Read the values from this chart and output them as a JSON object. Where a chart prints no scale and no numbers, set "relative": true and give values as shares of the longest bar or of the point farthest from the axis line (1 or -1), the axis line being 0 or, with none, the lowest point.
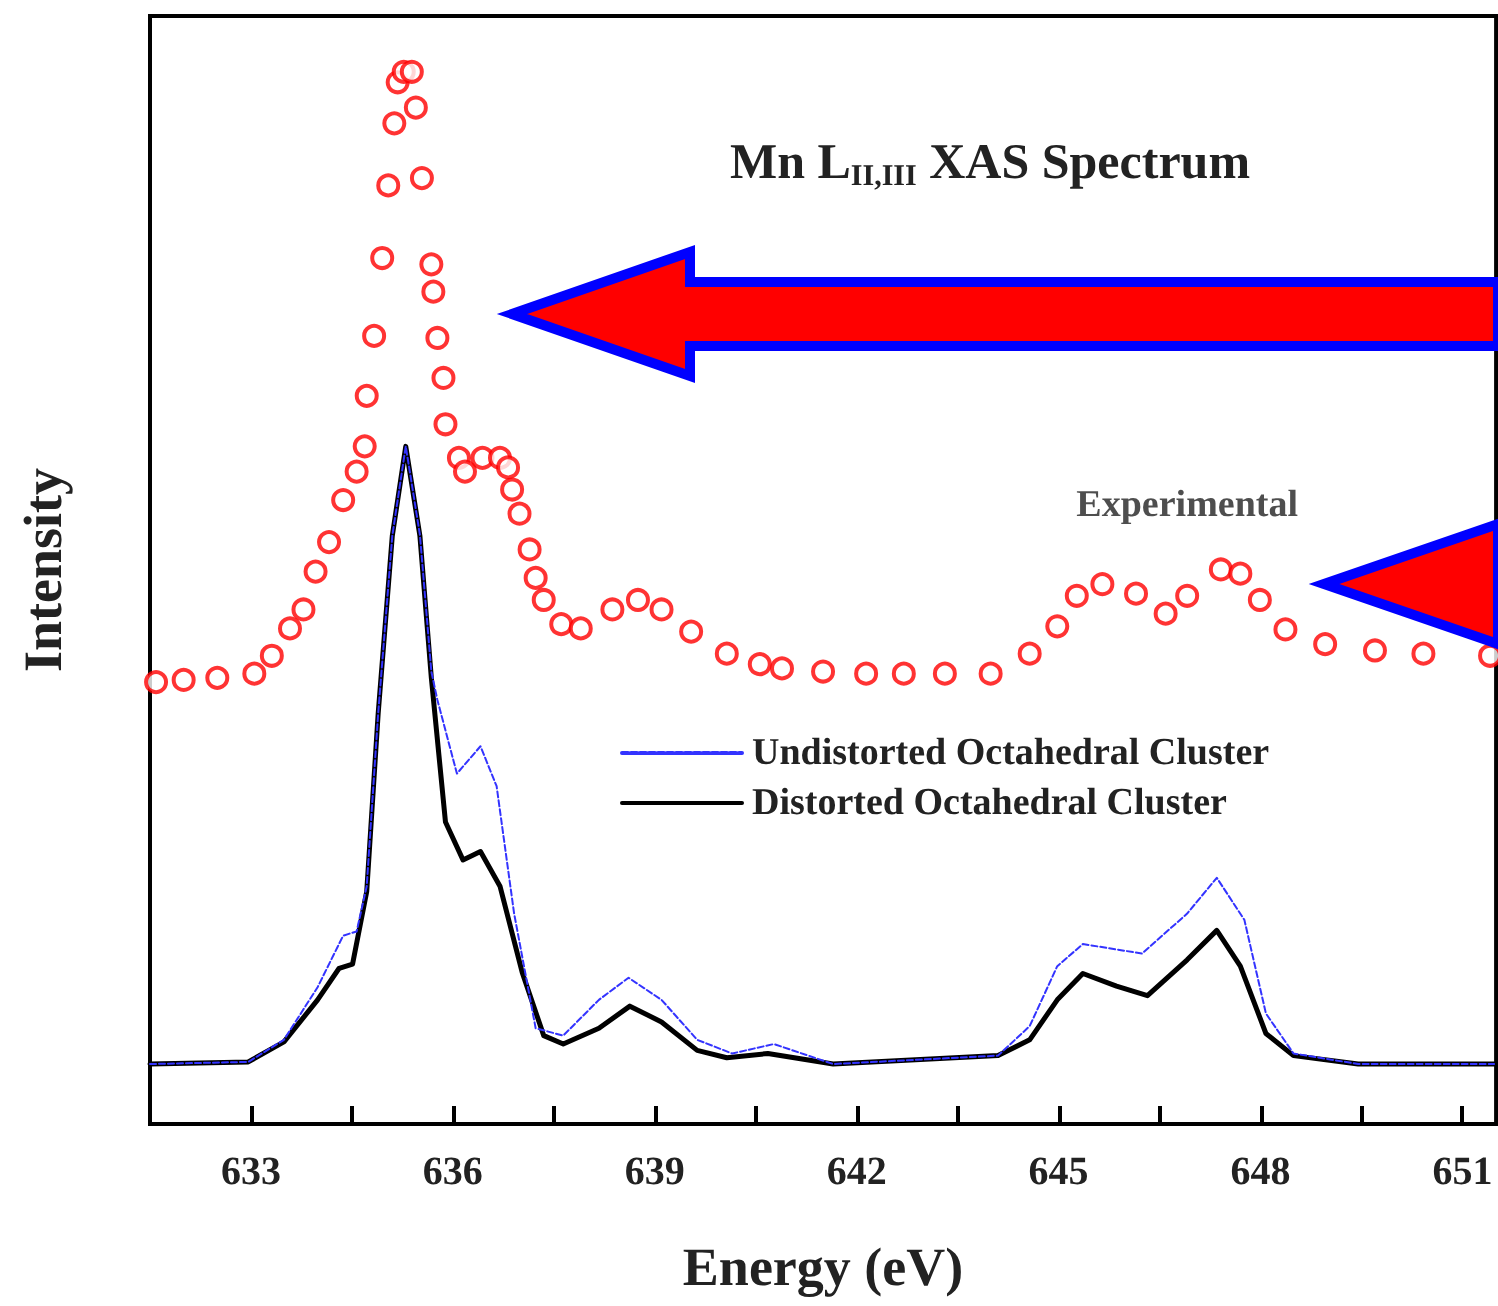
{
  "chart_data": {
    "type": "line",
    "title": "Mn L$_{II,III}$ XAS Spectrum",
    "xlabel": "Energy (eV)",
    "ylabel": "Intensity",
    "relative": true,
    "xlim": [
      631.5,
      651.5
    ],
    "xticks": [
      633,
      {
        "value": 634.5,
        "label": null
      },
      636,
      {
        "value": 637.5,
        "label": null
      },
      639,
      {
        "value": 640.5,
        "label": null
      },
      642,
      {
        "value": 643.5,
        "label": null
      },
      645,
      {
        "value": 646.5,
        "label": null
      },
      648,
      {
        "value": 649.5,
        "label": null
      },
      651
    ],
    "legend": "right",
    "grid": false,
    "series": [
      {
        "name": "Experimental",
        "type": "scatter",
        "marker": "circle",
        "color": "#ff0000",
        "x": [
          631.59,
          632.0,
          632.5,
          633.05,
          633.31,
          633.58,
          633.78,
          633.96,
          634.16,
          634.37,
          634.57,
          634.69,
          634.72,
          634.83,
          634.95,
          635.04,
          635.13,
          635.18,
          635.27,
          635.39,
          635.45,
          635.54,
          635.68,
          635.71,
          635.77,
          635.86,
          635.89,
          636.09,
          636.18,
          636.44,
          636.7,
          636.82,
          636.88,
          636.99,
          637.14,
          637.23,
          637.35,
          637.61,
          637.9,
          638.37,
          638.75,
          639.1,
          639.54,
          640.07,
          640.56,
          640.89,
          641.5,
          642.14,
          642.7,
          643.31,
          643.99,
          644.57,
          644.98,
          645.27,
          645.65,
          646.15,
          646.59,
          646.91,
          647.41,
          647.7,
          647.99,
          648.37,
          648.96,
          649.7,
          650.42,
          651.41
        ],
        "values": [
          0.42,
          0.422,
          0.424,
          0.428,
          0.445,
          0.471,
          0.489,
          0.525,
          0.553,
          0.593,
          0.62,
          0.644,
          0.692,
          0.749,
          0.823,
          0.892,
          0.951,
          0.99,
          1.0,
          1.0,
          0.966,
          0.899,
          0.817,
          0.791,
          0.747,
          0.709,
          0.665,
          0.633,
          0.62,
          0.633,
          0.633,
          0.624,
          0.603,
          0.58,
          0.546,
          0.519,
          0.498,
          0.475,
          0.471,
          0.489,
          0.498,
          0.489,
          0.468,
          0.447,
          0.437,
          0.433,
          0.43,
          0.428,
          0.428,
          0.428,
          0.428,
          0.447,
          0.473,
          0.502,
          0.513,
          0.504,
          0.485,
          0.502,
          0.527,
          0.523,
          0.498,
          0.47,
          0.456,
          0.45,
          0.447,
          0.445
        ]
      },
      {
        "name": "Undistorted Octahedral Cluster",
        "marker": "none",
        "line_style": "dashed",
        "color": "#3333ff",
        "x": [
          631.5,
          632.96,
          633.49,
          633.99,
          634.37,
          634.57,
          634.72,
          634.89,
          635.1,
          635.3,
          635.51,
          635.68,
          635.77,
          636.06,
          636.41,
          636.65,
          636.91,
          637.23,
          637.64,
          638.17,
          638.61,
          639.1,
          639.63,
          640.15,
          640.77,
          641.65,
          644.1,
          644.57,
          644.98,
          645.36,
          646.24,
          646.91,
          647.35,
          647.76,
          648.08,
          648.49,
          649.45,
          651.47
        ],
        "values": [
          0.057,
          0.059,
          0.08,
          0.13,
          0.179,
          0.183,
          0.226,
          0.39,
          0.559,
          0.644,
          0.56,
          0.43,
          0.403,
          0.333,
          0.359,
          0.321,
          0.2,
          0.091,
          0.084,
          0.118,
          0.139,
          0.118,
          0.08,
          0.067,
          0.076,
          0.057,
          0.065,
          0.093,
          0.15,
          0.171,
          0.162,
          0.2,
          0.234,
          0.194,
          0.105,
          0.067,
          0.057,
          0.057
        ]
      },
      {
        "name": "Distorted Octahedral Cluster",
        "marker": "none",
        "line_style": "solid",
        "color": "#000000",
        "x": [
          631.5,
          632.96,
          633.49,
          633.99,
          634.31,
          634.51,
          634.72,
          634.89,
          635.1,
          635.3,
          635.51,
          635.68,
          635.89,
          636.15,
          636.41,
          636.7,
          637.03,
          637.35,
          637.64,
          638.17,
          638.63,
          639.1,
          639.63,
          640.07,
          640.68,
          641.65,
          644.1,
          644.57,
          644.98,
          645.36,
          645.86,
          646.32,
          646.91,
          647.35,
          647.7,
          648.08,
          648.49,
          649.45,
          651.47
        ],
        "values": [
          0.057,
          0.059,
          0.078,
          0.118,
          0.148,
          0.152,
          0.221,
          0.39,
          0.559,
          0.644,
          0.559,
          0.424,
          0.287,
          0.251,
          0.259,
          0.226,
          0.144,
          0.084,
          0.076,
          0.091,
          0.112,
          0.097,
          0.07,
          0.063,
          0.067,
          0.057,
          0.065,
          0.08,
          0.118,
          0.143,
          0.131,
          0.122,
          0.156,
          0.184,
          0.15,
          0.086,
          0.065,
          0.057,
          0.057
        ]
      }
    ]
  }
}
